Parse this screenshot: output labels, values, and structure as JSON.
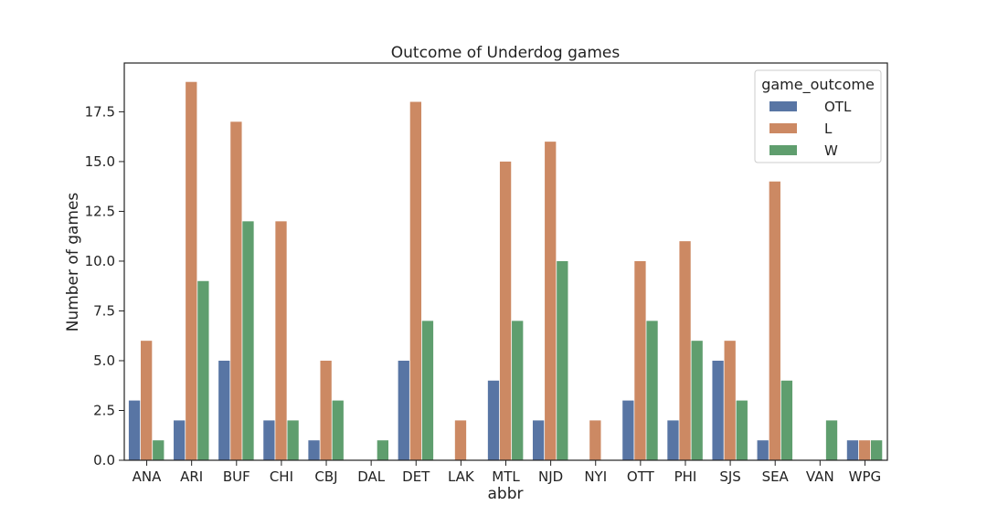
{
  "chart_data": {
    "type": "bar",
    "title": "Outcome of Underdog games",
    "xlabel": "abbr",
    "ylabel": "Number of games",
    "categories": [
      "ANA",
      "ARI",
      "BUF",
      "CHI",
      "CBJ",
      "DAL",
      "DET",
      "LAK",
      "MTL",
      "NJD",
      "NYI",
      "OTT",
      "PHI",
      "SJS",
      "SEA",
      "VAN",
      "WPG"
    ],
    "series": [
      {
        "name": "OTL",
        "color": "#5875a4",
        "values": [
          3,
          2,
          5,
          2,
          1,
          0,
          5,
          0,
          4,
          2,
          0,
          3,
          2,
          5,
          1,
          0,
          1
        ]
      },
      {
        "name": "L",
        "color": "#cc8963",
        "values": [
          6,
          19,
          17,
          12,
          5,
          0,
          18,
          2,
          15,
          16,
          2,
          10,
          11,
          6,
          14,
          0,
          1
        ]
      },
      {
        "name": "W",
        "color": "#5f9e6e",
        "values": [
          1,
          9,
          12,
          2,
          3,
          1,
          7,
          0,
          7,
          10,
          0,
          7,
          6,
          3,
          4,
          2,
          1
        ]
      }
    ],
    "ylim": [
      0,
      19.95
    ],
    "yticks": [
      0.0,
      2.5,
      5.0,
      7.5,
      10.0,
      12.5,
      15.0,
      17.5
    ],
    "ytick_labels": [
      "0.0",
      "2.5",
      "5.0",
      "7.5",
      "10.0",
      "12.5",
      "15.0",
      "17.5"
    ],
    "legend": {
      "title": "game_outcome",
      "position": "top-right"
    },
    "grid": false
  }
}
